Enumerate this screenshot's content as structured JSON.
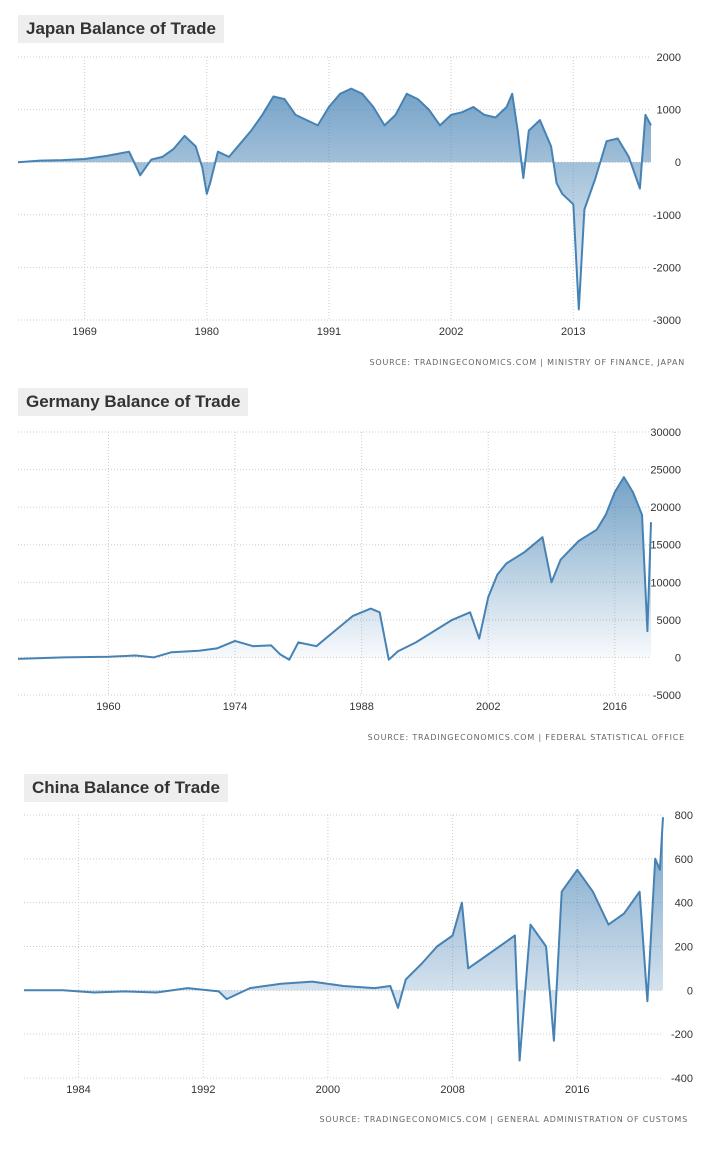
{
  "chart_data": [
    {
      "id": "japan",
      "type": "area",
      "title": "Japan Balance of Trade",
      "source": "SOURCE:  TRADINGECONOMICS.COM  |  MINISTRY OF FINANCE, JAPAN",
      "x_ticks": [
        "1969",
        "1980",
        "1991",
        "2002",
        "2013"
      ],
      "y_ticks": [
        2000,
        1000,
        0,
        -1000,
        -2000,
        -3000
      ],
      "ylim": [
        -3000,
        2000
      ],
      "xlim": [
        1963,
        2020
      ],
      "grid": true,
      "series": [
        {
          "color": "#4682b4",
          "x": [
            1963,
            1965,
            1967,
            1969,
            1971,
            1973,
            1974,
            1975,
            1976,
            1977,
            1978,
            1979,
            1979.6,
            1980,
            1980.3,
            1981,
            1982,
            1983,
            1984,
            1985,
            1986,
            1987,
            1988,
            1989,
            1990,
            1991,
            1992,
            1993,
            1994,
            1995,
            1996,
            1997,
            1998,
            1999,
            2000,
            2001,
            2002,
            2003,
            2004,
            2005,
            2006,
            2007,
            2007.5,
            2008,
            2008.5,
            2009,
            2010,
            2011,
            2011.5,
            2012,
            2013,
            2013.5,
            2014,
            2015,
            2016,
            2017,
            2018,
            2019,
            2019.5,
            2020
          ],
          "values": [
            0,
            30,
            40,
            60,
            120,
            200,
            -250,
            50,
            100,
            250,
            500,
            300,
            -100,
            -600,
            -400,
            200,
            100,
            350,
            600,
            900,
            1250,
            1200,
            900,
            800,
            700,
            1050,
            1300,
            1400,
            1300,
            1050,
            700,
            900,
            1300,
            1200,
            1000,
            700,
            900,
            950,
            1050,
            900,
            850,
            1050,
            1300,
            600,
            -300,
            600,
            800,
            300,
            -400,
            -600,
            -800,
            -2800,
            -900,
            -300,
            400,
            450,
            100,
            -500,
            900,
            700
          ]
        }
      ]
    },
    {
      "id": "germany",
      "type": "area",
      "title": "Germany Balance of Trade",
      "source": "SOURCE:  TRADINGECONOMICS.COM  |  FEDERAL STATISTICAL OFFICE",
      "x_ticks": [
        "1960",
        "1974",
        "1988",
        "2002",
        "2016"
      ],
      "y_ticks": [
        30000,
        25000,
        20000,
        15000,
        10000,
        5000,
        0,
        -5000
      ],
      "ylim": [
        -5000,
        30000
      ],
      "xlim": [
        1950,
        2020
      ],
      "grid": true,
      "series": [
        {
          "color": "#4682b4",
          "x": [
            1950,
            1955,
            1960,
            1963,
            1965,
            1967,
            1970,
            1972,
            1974,
            1976,
            1978,
            1979,
            1980,
            1981,
            1983,
            1985,
            1987,
            1989,
            1990,
            1991,
            1992,
            1994,
            1996,
            1998,
            2000,
            2001,
            2002,
            2003,
            2004,
            2006,
            2008,
            2009,
            2010,
            2012,
            2014,
            2015,
            2016,
            2017,
            2018,
            2019,
            2019.6,
            2020
          ],
          "values": [
            -200,
            0,
            100,
            250,
            0,
            700,
            900,
            1200,
            2200,
            1500,
            1600,
            400,
            -300,
            2000,
            1500,
            3500,
            5500,
            6500,
            6000,
            -300,
            800,
            2000,
            3500,
            5000,
            6000,
            2500,
            8000,
            11000,
            12500,
            14000,
            16000,
            10000,
            13000,
            15500,
            17000,
            19000,
            22000,
            24000,
            22000,
            19000,
            3500,
            18000
          ]
        }
      ]
    },
    {
      "id": "china",
      "type": "area",
      "title": "China Balance of Trade",
      "source": "SOURCE:  TRADINGECONOMICS.COM  |  GENERAL ADMINISTRATION OF CUSTOMS",
      "x_ticks": [
        "1984",
        "1992",
        "2000",
        "2008",
        "2016"
      ],
      "y_ticks": [
        800,
        600,
        400,
        200,
        0,
        -200,
        -400
      ],
      "ylim": [
        -400,
        800
      ],
      "xlim": [
        1980.5,
        2021.5
      ],
      "grid": true,
      "series": [
        {
          "color": "#4682b4",
          "x": [
            1980.5,
            1983,
            1985,
            1987,
            1989,
            1991,
            1993,
            1993.5,
            1995,
            1997,
            1999,
            2001,
            2003,
            2004,
            2004.5,
            2005,
            2006,
            2007,
            2008,
            2008.6,
            2009,
            2010,
            2011,
            2012,
            2012.3,
            2013,
            2014,
            2014.5,
            2015,
            2016,
            2017,
            2018,
            2019,
            2020,
            2020.5,
            2021,
            2021.3,
            2021.5
          ],
          "values": [
            0,
            0,
            -10,
            -5,
            -10,
            10,
            -5,
            -40,
            10,
            30,
            40,
            20,
            10,
            20,
            -80,
            50,
            120,
            200,
            250,
            400,
            100,
            150,
            200,
            250,
            -320,
            300,
            200,
            -230,
            450,
            550,
            450,
            300,
            350,
            450,
            -50,
            600,
            550,
            790
          ]
        }
      ]
    }
  ]
}
